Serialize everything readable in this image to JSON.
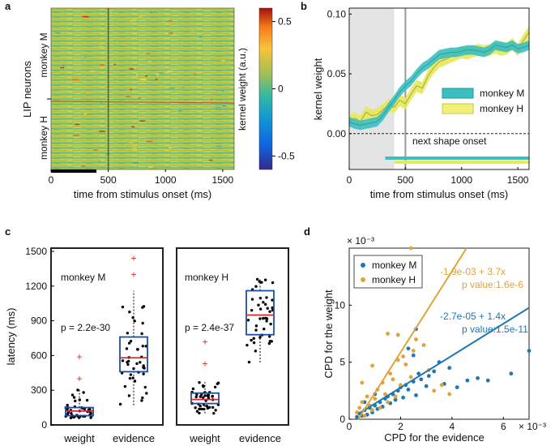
{
  "chart_data": [
    {
      "panel": "a",
      "type": "heatmap",
      "ylabel": "LIP neurons",
      "xlabel": "time from stimulus onset (ms)",
      "row_groups": [
        "monkey M",
        "monkey H"
      ],
      "x_ticks": [
        0,
        500,
        1000,
        1500
      ],
      "xlim": [
        0,
        1600
      ],
      "onset_line_ms": 500,
      "colorbar": {
        "label": "kernel weight (a.u.)",
        "ticks": [
          0.5,
          0,
          -0.5
        ],
        "range": [
          -0.6,
          0.6
        ]
      }
    },
    {
      "panel": "b",
      "type": "line",
      "xlabel": "time from stimulus onset (ms)",
      "ylabel": "kernel weight",
      "xlim": [
        0,
        1600
      ],
      "ylim": [
        -0.03,
        0.105
      ],
      "x_ticks": [
        0,
        500,
        1000,
        1500
      ],
      "y_ticks": [
        0,
        0.05,
        0.1
      ],
      "y_tick_labels": [
        "0.00",
        "0.05",
        "0.10"
      ],
      "annotation": "next shape onset",
      "shaded_region_ms": [
        0,
        400
      ],
      "onset_line_ms": 500,
      "series": [
        {
          "name": "monkey M",
          "color": "#3cbfc0",
          "x": [
            0,
            50,
            100,
            150,
            200,
            250,
            300,
            350,
            400,
            450,
            500,
            550,
            600,
            650,
            700,
            750,
            800,
            850,
            900,
            950,
            1000,
            1050,
            1100,
            1150,
            1200,
            1250,
            1300,
            1350,
            1400,
            1450,
            1500,
            1550,
            1600
          ],
          "y": [
            0.01,
            0.008,
            0.007,
            0.008,
            0.009,
            0.01,
            0.015,
            0.022,
            0.028,
            0.035,
            0.04,
            0.044,
            0.05,
            0.055,
            0.058,
            0.062,
            0.066,
            0.067,
            0.068,
            0.068,
            0.069,
            0.07,
            0.07,
            0.069,
            0.068,
            0.07,
            0.074,
            0.073,
            0.072,
            0.074,
            0.071,
            0.072,
            0.074
          ],
          "band": 0.004
        },
        {
          "name": "monkey H",
          "color": "#e8e85a",
          "x": [
            0,
            50,
            100,
            150,
            200,
            250,
            300,
            350,
            400,
            450,
            500,
            550,
            600,
            650,
            700,
            750,
            800,
            850,
            900,
            950,
            1000,
            1050,
            1100,
            1150,
            1200,
            1250,
            1300,
            1350,
            1400,
            1450,
            1500,
            1550,
            1600
          ],
          "y": [
            0.01,
            0.013,
            0.01,
            0.018,
            0.015,
            0.016,
            0.02,
            0.024,
            0.022,
            0.028,
            0.025,
            0.033,
            0.04,
            0.038,
            0.048,
            0.055,
            0.06,
            0.062,
            0.064,
            0.066,
            0.068,
            0.067,
            0.069,
            0.07,
            0.069,
            0.07,
            0.072,
            0.07,
            0.071,
            0.075,
            0.07,
            0.078,
            0.085
          ],
          "band": 0.005
        }
      ],
      "sig_bars": [
        {
          "name": "monkey M",
          "color": "#3cbfc0",
          "x": [
            320,
            1600
          ]
        },
        {
          "name": "monkey H",
          "color": "#e8e85a",
          "x": [
            400,
            1600
          ]
        }
      ]
    },
    {
      "panel": "c",
      "type": "box",
      "ylabel": "latency (ms)",
      "ylim": [
        0,
        1500
      ],
      "y_ticks": [
        0,
        300,
        600,
        900,
        1200,
        1500
      ],
      "categories": [
        "weight",
        "evidence"
      ],
      "groups": [
        {
          "name": "monkey M",
          "p": "p = 2.2e-30",
          "boxes": [
            {
              "category": "weight",
              "q1": 80,
              "median": 120,
              "q3": 150,
              "lo": 60,
              "hi": 310,
              "outliers": [
                400,
                590
              ]
            },
            {
              "category": "evidence",
              "q1": 460,
              "median": 580,
              "q3": 760,
              "lo": 170,
              "hi": 1160,
              "outliers": [
                1300,
                1440
              ]
            }
          ]
        },
        {
          "name": "monkey H",
          "p": "p = 2.4e-37",
          "boxes": [
            {
              "category": "weight",
              "q1": 185,
              "median": 220,
              "q3": 275,
              "lo": 100,
              "hi": 370,
              "outliers": [
                530,
                720
              ]
            },
            {
              "category": "evidence",
              "q1": 780,
              "median": 950,
              "q3": 1160,
              "lo": 540,
              "hi": 1270,
              "outliers": []
            }
          ]
        }
      ]
    },
    {
      "panel": "d",
      "type": "scatter",
      "xlabel": "CPD for the evidence",
      "ylabel": "CPD for the weight",
      "x_multiplier": "× 10⁻³",
      "y_multiplier": "× 10⁻³",
      "xlim": [
        0,
        7
      ],
      "ylim": [
        0,
        15
      ],
      "x_ticks": [
        0,
        2,
        4,
        6
      ],
      "y_ticks": [
        0,
        5,
        10
      ],
      "series": [
        {
          "name": "monkey M",
          "color": "#1f77b4",
          "fit": "-2.7e-05 + 1.4x",
          "p": "p value:1.5e-11",
          "slope": 1.4,
          "intercept": -0.027,
          "points": [
            [
              0.3,
              0.2
            ],
            [
              0.4,
              0.5
            ],
            [
              0.5,
              0.3
            ],
            [
              0.6,
              0.8
            ],
            [
              0.7,
              0.4
            ],
            [
              0.8,
              1.0
            ],
            [
              0.9,
              0.6
            ],
            [
              1.0,
              1.2
            ],
            [
              1.1,
              0.9
            ],
            [
              1.2,
              1.5
            ],
            [
              1.3,
              1.1
            ],
            [
              1.4,
              1.8
            ],
            [
              1.5,
              2.0
            ],
            [
              1.6,
              1.4
            ],
            [
              1.7,
              2.2
            ],
            [
              1.8,
              1.7
            ],
            [
              1.9,
              2.5
            ],
            [
              2.0,
              2.8
            ],
            [
              2.1,
              1.9
            ],
            [
              2.2,
              3.0
            ],
            [
              2.3,
              2.6
            ],
            [
              2.5,
              3.3
            ],
            [
              2.6,
              2.1
            ],
            [
              2.7,
              4.0
            ],
            [
              2.8,
              3.5
            ],
            [
              3.0,
              2.9
            ],
            [
              3.1,
              3.8
            ],
            [
              3.3,
              4.2
            ],
            [
              3.5,
              5.0
            ],
            [
              3.7,
              3.1
            ],
            [
              3.9,
              4.5
            ],
            [
              4.2,
              2.8
            ],
            [
              4.6,
              3.4
            ],
            [
              5.0,
              3.6
            ],
            [
              5.4,
              3.4
            ],
            [
              2.5,
              5.6
            ],
            [
              2.6,
              7.9
            ],
            [
              2.3,
              6.2
            ],
            [
              6.3,
              4.0
            ],
            [
              7.0,
              6.0
            ],
            [
              1.0,
              2.2
            ],
            [
              0.6,
              1.5
            ]
          ]
        },
        {
          "name": "monkey H",
          "color": "#e0a33a",
          "fit": "-1.9e-03 + 3.7x",
          "p": "p value:1.6e-6",
          "slope": 3.7,
          "intercept": -1.9,
          "points": [
            [
              0.3,
              0.6
            ],
            [
              0.4,
              1.0
            ],
            [
              0.5,
              1.5
            ],
            [
              0.6,
              0.3
            ],
            [
              0.7,
              2.0
            ],
            [
              0.8,
              1.2
            ],
            [
              0.9,
              0.8
            ],
            [
              1.0,
              1.8
            ],
            [
              1.1,
              2.6
            ],
            [
              1.2,
              1.0
            ],
            [
              1.3,
              3.2
            ],
            [
              1.4,
              2.2
            ],
            [
              1.5,
              1.5
            ],
            [
              1.6,
              4.0
            ],
            [
              1.7,
              3.5
            ],
            [
              1.8,
              2.0
            ],
            [
              1.9,
              5.2
            ],
            [
              2.0,
              3.0
            ],
            [
              2.2,
              4.8
            ],
            [
              2.4,
              3.7
            ],
            [
              2.5,
              6.0
            ],
            [
              2.6,
              7.0
            ],
            [
              2.7,
              13.2
            ],
            [
              2.9,
              6.5
            ],
            [
              3.1,
              4.3
            ],
            [
              3.3,
              2.5
            ],
            [
              3.6,
              3.0
            ],
            [
              3.9,
              2.2
            ],
            [
              0.5,
              3.2
            ],
            [
              0.9,
              4.7
            ],
            [
              1.5,
              7.5
            ],
            [
              1.9,
              7.4
            ],
            [
              2.4,
              15.0
            ],
            [
              2.1,
              5.5
            ]
          ]
        }
      ]
    }
  ]
}
